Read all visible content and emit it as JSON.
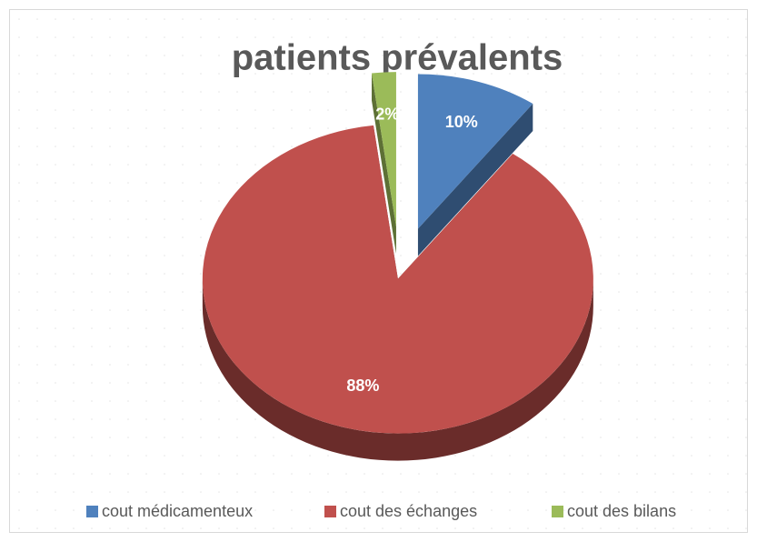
{
  "chart_data": {
    "type": "pie",
    "title": "patients prévalents",
    "categories": [
      "cout médicamenteux",
      "cout des échanges",
      "cout des bilans"
    ],
    "values": [
      10,
      88,
      2
    ],
    "value_labels": [
      "10%",
      "88%",
      "2%"
    ],
    "colors": [
      "#4f81bd",
      "#c0504d",
      "#9bbb59"
    ],
    "legend": "bottom"
  }
}
